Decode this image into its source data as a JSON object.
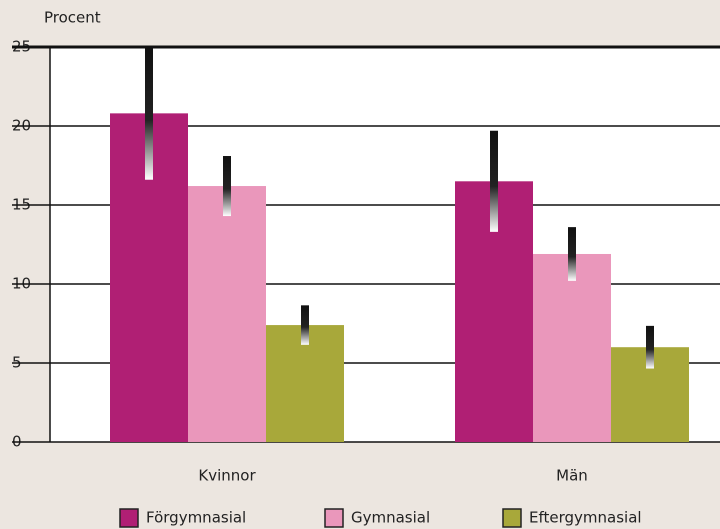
{
  "chart_data": {
    "type": "bar",
    "y_label": "Procent",
    "categories": [
      "Kvinnor",
      "Män"
    ],
    "series": [
      {
        "name": "Förgymnasial",
        "color": "#b01f74",
        "values": [
          20.8,
          16.5
        ],
        "errors": [
          4.2,
          3.2
        ]
      },
      {
        "name": "Gymnasial",
        "color": "#ea97bb",
        "values": [
          16.2,
          11.9
        ],
        "errors": [
          1.9,
          1.7
        ]
      },
      {
        "name": "Eftergymnasial",
        "color": "#a8a83a",
        "values": [
          7.4,
          6.0
        ],
        "errors": [
          1.25,
          1.35
        ]
      }
    ],
    "ylim": [
      0,
      25
    ],
    "yticks": [
      0,
      5,
      10,
      15,
      20,
      25
    ],
    "grid": true
  }
}
